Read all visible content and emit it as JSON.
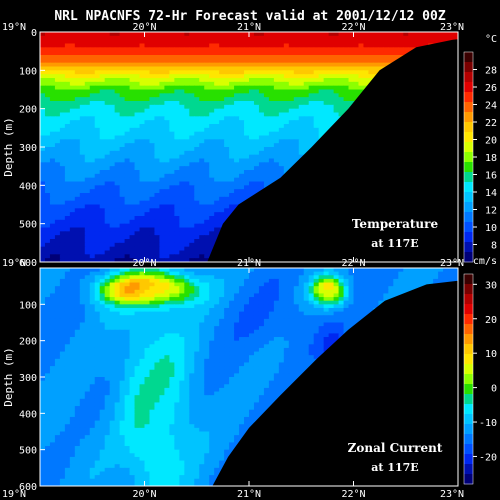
{
  "title": "NRL NPACNFS 72-Hr Forecast valid at 2001/12/12 00Z",
  "colors": {
    "background": "#000000",
    "land": "#000000",
    "text": "#ffffff",
    "temperature_scale": [
      "#3a0000",
      "#7a0000",
      "#b40000",
      "#e00000",
      "#ff2a00",
      "#ff6400",
      "#ff9a00",
      "#ffc800",
      "#ffe600",
      "#d8ff00",
      "#8cff00",
      "#28e000",
      "#00d890",
      "#00e8ff",
      "#00c4ff",
      "#00a0ff",
      "#0078ff",
      "#0050ff",
      "#0028f0",
      "#0010b0",
      "#000078"
    ],
    "current_scale": [
      "#3a0000",
      "#7a0000",
      "#b40000",
      "#e00000",
      "#ff2a00",
      "#ff6400",
      "#ff9a00",
      "#ffc800",
      "#ffe600",
      "#d8ff00",
      "#8cff00",
      "#28e000",
      "#00d890",
      "#00e8ff",
      "#00c4ff",
      "#00a0ff",
      "#0078ff",
      "#0050ff",
      "#0028f0",
      "#0010b0",
      "#000078"
    ]
  },
  "chart_data": [
    {
      "type": "heatmap",
      "name": "Temperature",
      "panel_label": "Temperature",
      "panel_sublabel": "at 117E",
      "xlabel": "",
      "ylabel": "Depth (m)",
      "x_ticks": [
        "19°N",
        "20°N",
        "21°N",
        "22°N",
        "23°N"
      ],
      "x_range": [
        19,
        23
      ],
      "y_ticks": [
        "0",
        "100",
        "200",
        "300",
        "400",
        "500",
        "600"
      ],
      "y_range": [
        0,
        600
      ],
      "y_inverted": true,
      "colorbar_unit": "°C",
      "colorbar_ticks": [
        28,
        26,
        24,
        22,
        20,
        18,
        16,
        14,
        12,
        10,
        8
      ],
      "colorbar_range": [
        6,
        30
      ],
      "bathymetry": {
        "lat": [
          19.0,
          20.4,
          20.6,
          20.75,
          20.9,
          21.3,
          21.6,
          21.95,
          22.25,
          22.6,
          22.95,
          23.15
        ],
        "depth": [
          600,
          600,
          600,
          500,
          450,
          380,
          300,
          200,
          100,
          40,
          20,
          15
        ]
      },
      "profile": {
        "depth": [
          0,
          25,
          50,
          75,
          90,
          110,
          150,
          200,
          250,
          300,
          400,
          500,
          600
        ],
        "temperature": [
          26.5,
          26,
          25,
          23.5,
          22,
          20,
          17,
          15,
          14,
          13,
          11,
          9,
          7.5
        ]
      }
    },
    {
      "type": "heatmap",
      "name": "Zonal Current",
      "panel_label": "Zonal Current",
      "panel_sublabel": "at 117E",
      "xlabel": "",
      "ylabel": "Depth (m)",
      "x_ticks": [
        "19°N",
        "20°N",
        "21°N",
        "22°N",
        "23°N"
      ],
      "x_range": [
        19,
        23
      ],
      "y_ticks": [
        "0",
        "100",
        "200",
        "300",
        "400",
        "500",
        "600"
      ],
      "y_range": [
        0,
        600
      ],
      "y_inverted": true,
      "colorbar_unit": "cm/s",
      "colorbar_ticks": [
        30,
        20,
        10,
        0,
        -10,
        -20
      ],
      "colorbar_range": [
        -28,
        33
      ],
      "bathymetry": {
        "lat": [
          19.0,
          20.4,
          20.65,
          20.8,
          21.0,
          21.3,
          21.65,
          21.95,
          22.3,
          22.7,
          23.0,
          23.15
        ],
        "depth": [
          600,
          600,
          600,
          520,
          440,
          350,
          250,
          170,
          90,
          45,
          35,
          30
        ]
      },
      "features": [
        {
          "lat": 20.0,
          "depth": 60,
          "value": 24,
          "rx": 0.28,
          "ry": 28
        },
        {
          "lat": 20.05,
          "depth": 60,
          "value": 18,
          "rx": 0.42,
          "ry": 48
        },
        {
          "lat": 21.75,
          "depth": 60,
          "value": 20,
          "rx": 0.09,
          "ry": 25
        },
        {
          "lat": 21.75,
          "depth": 70,
          "value": 10,
          "rx": 0.18,
          "ry": 40
        },
        {
          "lat": 20.1,
          "depth": 420,
          "value": 2,
          "rx": 0.22,
          "ry": 200
        },
        {
          "lat": 20.1,
          "depth": 350,
          "value": -6,
          "rx": 0.42,
          "ry": 280
        },
        {
          "lat": 19.35,
          "depth": 480,
          "value": -12,
          "rx": 0.35,
          "ry": 170
        },
        {
          "lat": 21.3,
          "depth": 140,
          "value": -16,
          "rx": 0.45,
          "ry": 90
        },
        {
          "lat": 21.8,
          "depth": 210,
          "value": -20,
          "rx": 0.12,
          "ry": 35
        }
      ],
      "background_value": -14
    }
  ]
}
